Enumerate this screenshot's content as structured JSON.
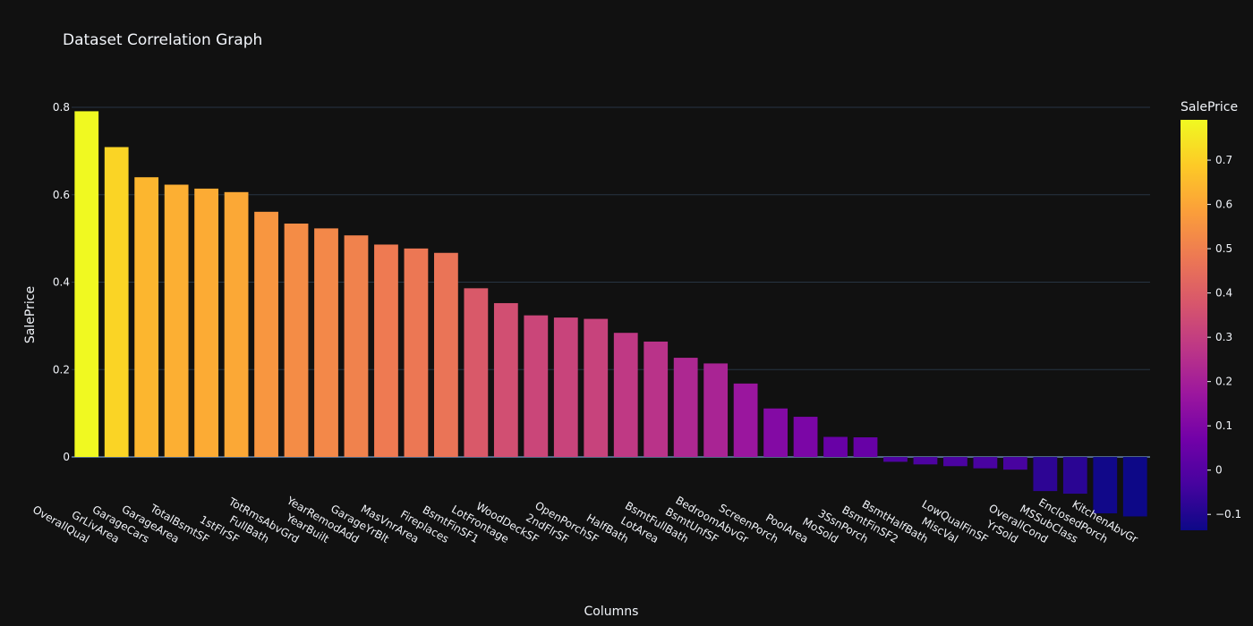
{
  "chart_data": {
    "type": "bar",
    "title": "Dataset Correlation Graph",
    "xlabel": "Columns",
    "ylabel": "SalePrice",
    "colorbar_title": "SalePrice",
    "ylim": [
      -0.14,
      0.8
    ],
    "yticks": [
      0,
      0.2,
      0.4,
      0.6,
      0.8
    ],
    "ytick_labels": [
      "0",
      "0.2",
      "0.4",
      "0.6",
      "0.8"
    ],
    "colorbar_ticks": [
      -0.1,
      0,
      0.1,
      0.2,
      0.3,
      0.4,
      0.5,
      0.6,
      0.7
    ],
    "colorbar_tick_labels": [
      "−0.1",
      "0",
      "0.1",
      "0.2",
      "0.3",
      "0.4",
      "0.5",
      "0.6",
      "0.7"
    ],
    "color_range": [
      -0.1359,
      0.791
    ],
    "grid": true,
    "colorscale": [
      "#0d0887",
      "#46039f",
      "#7201a8",
      "#9c179e",
      "#bd3786",
      "#d8576b",
      "#ed7953",
      "#fb9f3a",
      "#fdca26",
      "#f0f921"
    ],
    "categories": [
      "OverallQual",
      "GrLivArea",
      "GarageCars",
      "GarageArea",
      "TotalBsmtSF",
      "1stFlrSF",
      "FullBath",
      "TotRmsAbvGrd",
      "YearBuilt",
      "YearRemodAdd",
      "GarageYrBlt",
      "MasVnrArea",
      "Fireplaces",
      "BsmtFinSF1",
      "LotFrontage",
      "WoodDeckSF",
      "2ndFlrSF",
      "OpenPorchSF",
      "HalfBath",
      "LotArea",
      "BsmtFullBath",
      "BsmtUnfSF",
      "BedroomAbvGr",
      "ScreenPorch",
      "PoolArea",
      "MoSold",
      "3SsnPorch",
      "BsmtFinSF2",
      "BsmtHalfBath",
      "MiscVal",
      "LowQualFinSF",
      "YrSold",
      "OverallCond",
      "MSSubClass",
      "EnclosedPorch",
      "KitchenAbvGr"
    ],
    "values": [
      0.791,
      0.709,
      0.64,
      0.623,
      0.614,
      0.606,
      0.561,
      0.534,
      0.523,
      0.507,
      0.486,
      0.477,
      0.467,
      0.386,
      0.352,
      0.324,
      0.319,
      0.316,
      0.284,
      0.264,
      0.227,
      0.214,
      0.168,
      0.111,
      0.092,
      0.046,
      0.045,
      -0.011,
      -0.017,
      -0.021,
      -0.026,
      -0.029,
      -0.078,
      -0.084,
      -0.129,
      -0.136
    ]
  }
}
